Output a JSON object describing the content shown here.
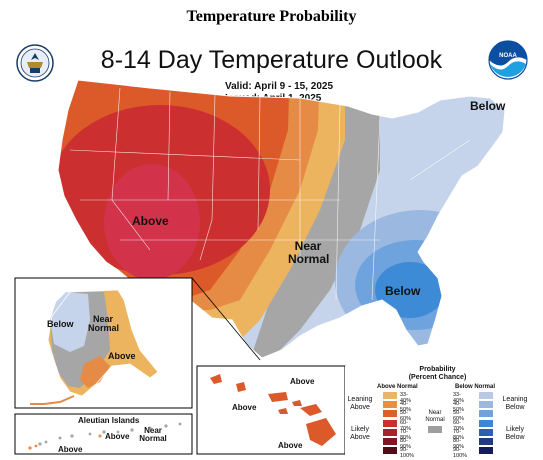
{
  "page_title": "Temperature Probability",
  "outlook": {
    "title": "8-14 Day Temperature Outlook",
    "valid": "Valid:  April 9 - 15, 2025",
    "issued": "Issued:  April 1, 2025"
  },
  "logos": {
    "left": "department-of-commerce-seal",
    "right": "noaa-logo",
    "right_text": "NOAA"
  },
  "map_labels": {
    "above_main": "Above",
    "below_ne": "Below",
    "near_normal_line1": "Near",
    "near_normal_line2": "Normal",
    "below_se": "Below"
  },
  "alaska": {
    "below": "Below",
    "near_line1": "Near",
    "near_line2": "Normal",
    "above": "Above"
  },
  "aleutian": {
    "title": "Aleutian Islands",
    "near_line1": "Near",
    "near_line2": "Normal",
    "above_mid": "Above",
    "above_left": "Above"
  },
  "hawaii": {
    "above_top": "Above",
    "above_left": "Above",
    "above_bottom": "Above"
  },
  "legend": {
    "title_line1": "Probability",
    "title_line2": "(Percent Chance)",
    "above_header": "Above Normal",
    "below_header": "Below Normal",
    "near_label_line1": "Near",
    "near_label_line2": "Normal",
    "leaning_above_line1": "Leaning",
    "leaning_above_line2": "Above",
    "likely_above_line1": "Likely",
    "likely_above_line2": "Above",
    "leaning_below_line1": "Leaning",
    "leaning_below_line2": "Below",
    "likely_below_line1": "Likely",
    "likely_below_line2": "Below",
    "ranges": [
      "33-40%",
      "40-50%",
      "50-60%",
      "60-70%",
      "70-80%",
      "80-90%",
      "90-100%"
    ],
    "above_colors": [
      "#e8b56a",
      "#e59044",
      "#d9602b",
      "#c9312b",
      "#a5232b",
      "#7d1724",
      "#4f0e17"
    ],
    "below_colors": [
      "#b9c9e3",
      "#9ab8e0",
      "#6fa3dd",
      "#3f86d2",
      "#2f5db0",
      "#213b82",
      "#141d57"
    ],
    "near_color": "#9e9e9e"
  },
  "colors": {
    "above_33_40": "#ecb45e",
    "above_40_50": "#e58b45",
    "above_50_60": "#dc592a",
    "above_60_70": "#cc2f2f",
    "above_70_80": "#d2334b",
    "near_normal": "#a6a6a6",
    "below_33_40": "#c5d4ea",
    "below_40_50": "#9ab8e0",
    "below_50_60": "#6fa3dd",
    "below_60_70": "#3d8ad6"
  }
}
